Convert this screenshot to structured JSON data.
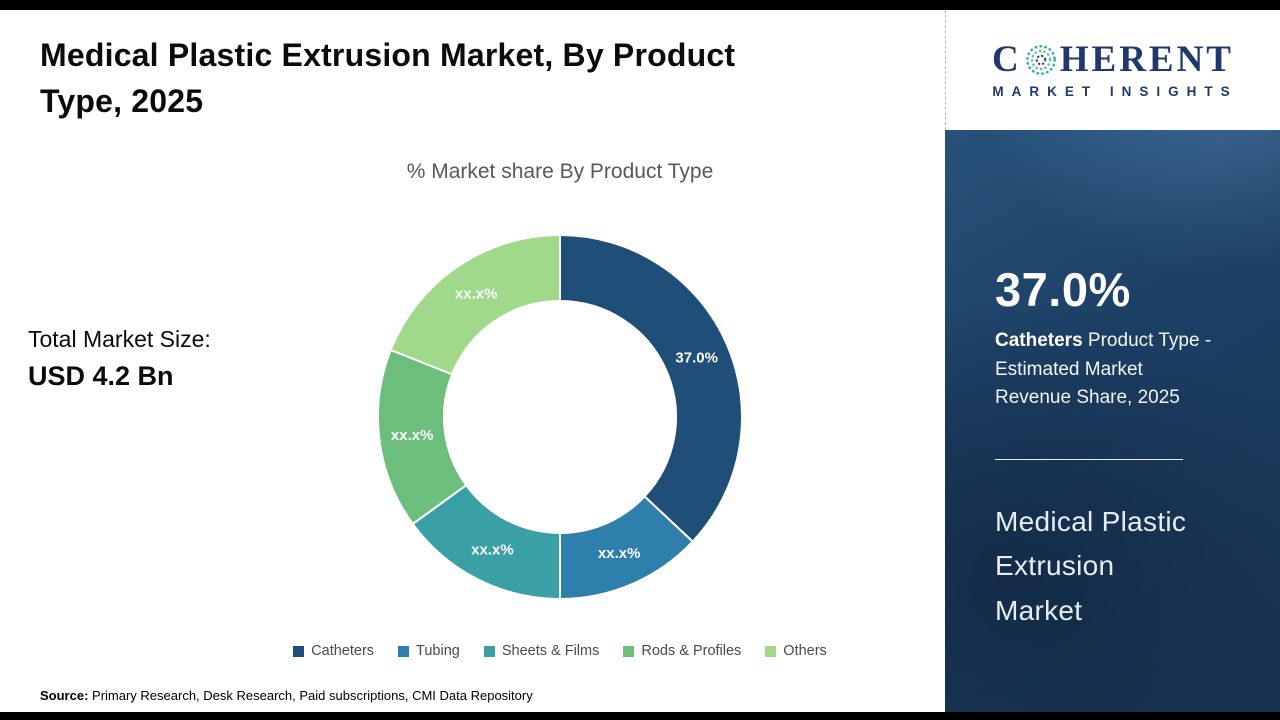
{
  "page": {
    "title": "Medical Plastic Extrusion Market, By Product Type, 2025"
  },
  "totals": {
    "label": "Total Market Size:",
    "value": "USD 4.2 Bn"
  },
  "chart_data": {
    "type": "pie",
    "subtype": "donut",
    "title": "% Market share By Product Type",
    "categories": [
      "Catheters",
      "Tubing",
      "Sheets & Films",
      "Rods & Profiles",
      "Others"
    ],
    "values": [
      37.0,
      13.0,
      15.0,
      16.0,
      19.0
    ],
    "displayed_labels": [
      "37.0%",
      "xx.x%",
      "xx.x%",
      "xx.x%",
      "xx.x%"
    ],
    "colors": [
      "#1F4E79",
      "#2E7FAC",
      "#3BA0A5",
      "#6CBE7D",
      "#A0D98A"
    ],
    "legend_position": "bottom",
    "note": "Only the Catheters share (37.0%) is labeled; other slice values are estimated from arc angles and masked on-chart as xx.x%"
  },
  "footer": {
    "source_label": "Source:",
    "source_text": " Primary Research, Desk Research, Paid subscriptions, CMI Data Repository"
  },
  "sidebar": {
    "logo": {
      "c": "C",
      "rest": "HERENT",
      "sub": "MARKET INSIGHTS"
    },
    "stat_value": "37.0%",
    "stat_bold": "Catheters",
    "stat_rest": " Product Type - Estimated Market Revenue Share, 2025",
    "market_name": "Medical Plastic Extrusion Market",
    "bg_color": "#1D4066"
  }
}
